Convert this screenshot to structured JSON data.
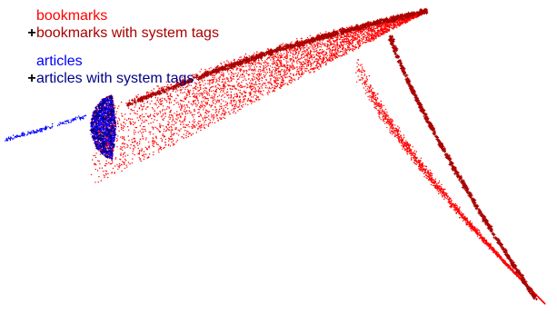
{
  "chart_data": {
    "type": "scatter",
    "title": "",
    "xlabel": "",
    "ylabel": "",
    "axes_visible": false,
    "grid": false,
    "legend_position": "top-left",
    "series": [
      {
        "name": "bookmarks",
        "marker": "dot",
        "color": "#ff0000",
        "point_count": 7000
      },
      {
        "name": "bookmarks with system tags",
        "marker": "+",
        "color": "#aa0000",
        "point_count": 1500
      },
      {
        "name": "articles",
        "marker": "dot",
        "color": "#0000ff",
        "point_count": 1200
      },
      {
        "name": "articles with system tags",
        "marker": "+",
        "color": "#000088",
        "point_count": 150
      }
    ],
    "legend_marker_color": "#000000"
  }
}
